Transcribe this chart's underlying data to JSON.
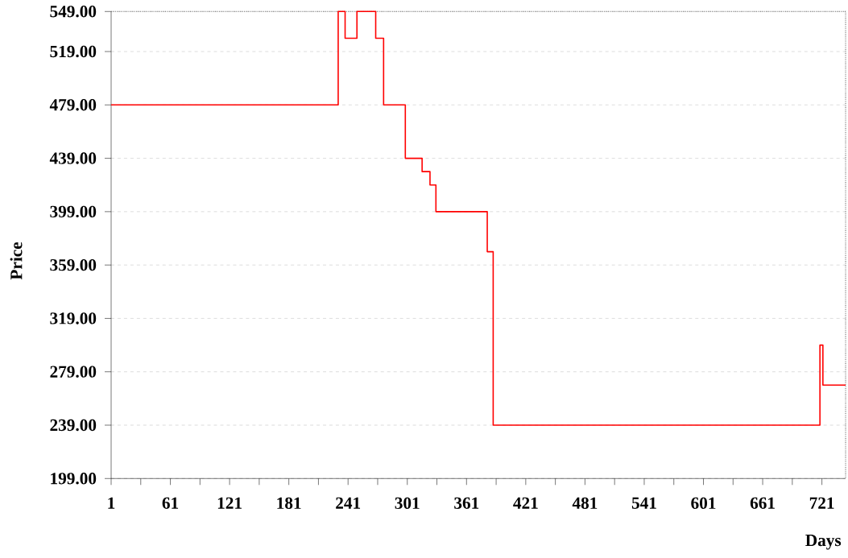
{
  "chart_data": {
    "type": "step",
    "xlabel": "Days",
    "ylabel": "Price",
    "x": [
      1,
      231,
      238,
      250,
      269,
      277,
      299,
      316,
      324,
      330,
      382,
      388,
      719,
      722,
      745
    ],
    "values": [
      479,
      549,
      529,
      549,
      529,
      479,
      439,
      429,
      419,
      399,
      369,
      239,
      299,
      269,
      269
    ],
    "color": "#ff0000",
    "xlim": [
      1,
      745
    ],
    "xticks": [
      1,
      {
        "value": 31,
        "label": null
      },
      61,
      {
        "value": 91,
        "label": null
      },
      121,
      {
        "value": 151,
        "label": null
      },
      181,
      {
        "value": 211,
        "label": null
      },
      241,
      {
        "value": 271,
        "label": null
      },
      301,
      {
        "value": 331,
        "label": null
      },
      361,
      {
        "value": 391,
        "label": null
      },
      421,
      {
        "value": 451,
        "label": null
      },
      481,
      {
        "value": 511,
        "label": null
      },
      541,
      {
        "value": 571,
        "label": null
      },
      601,
      {
        "value": 631,
        "label": null
      },
      661,
      {
        "value": 691,
        "label": null
      },
      721
    ],
    "ylim": [
      199,
      549
    ],
    "yticks": [
      {
        "value": 199,
        "label": "199.00"
      },
      {
        "value": 239,
        "label": "239.00"
      },
      {
        "value": 279,
        "label": "279.00"
      },
      {
        "value": 319,
        "label": "319.00"
      },
      {
        "value": 359,
        "label": "359.00"
      },
      {
        "value": 399,
        "label": "399.00"
      },
      {
        "value": 439,
        "label": "439.00"
      },
      {
        "value": 479,
        "label": "479.00"
      },
      {
        "value": 519,
        "label": "519.00"
      },
      {
        "value": 549,
        "label": "549.00"
      }
    ],
    "grid": "y",
    "marker": "none",
    "line_style": "solid"
  }
}
